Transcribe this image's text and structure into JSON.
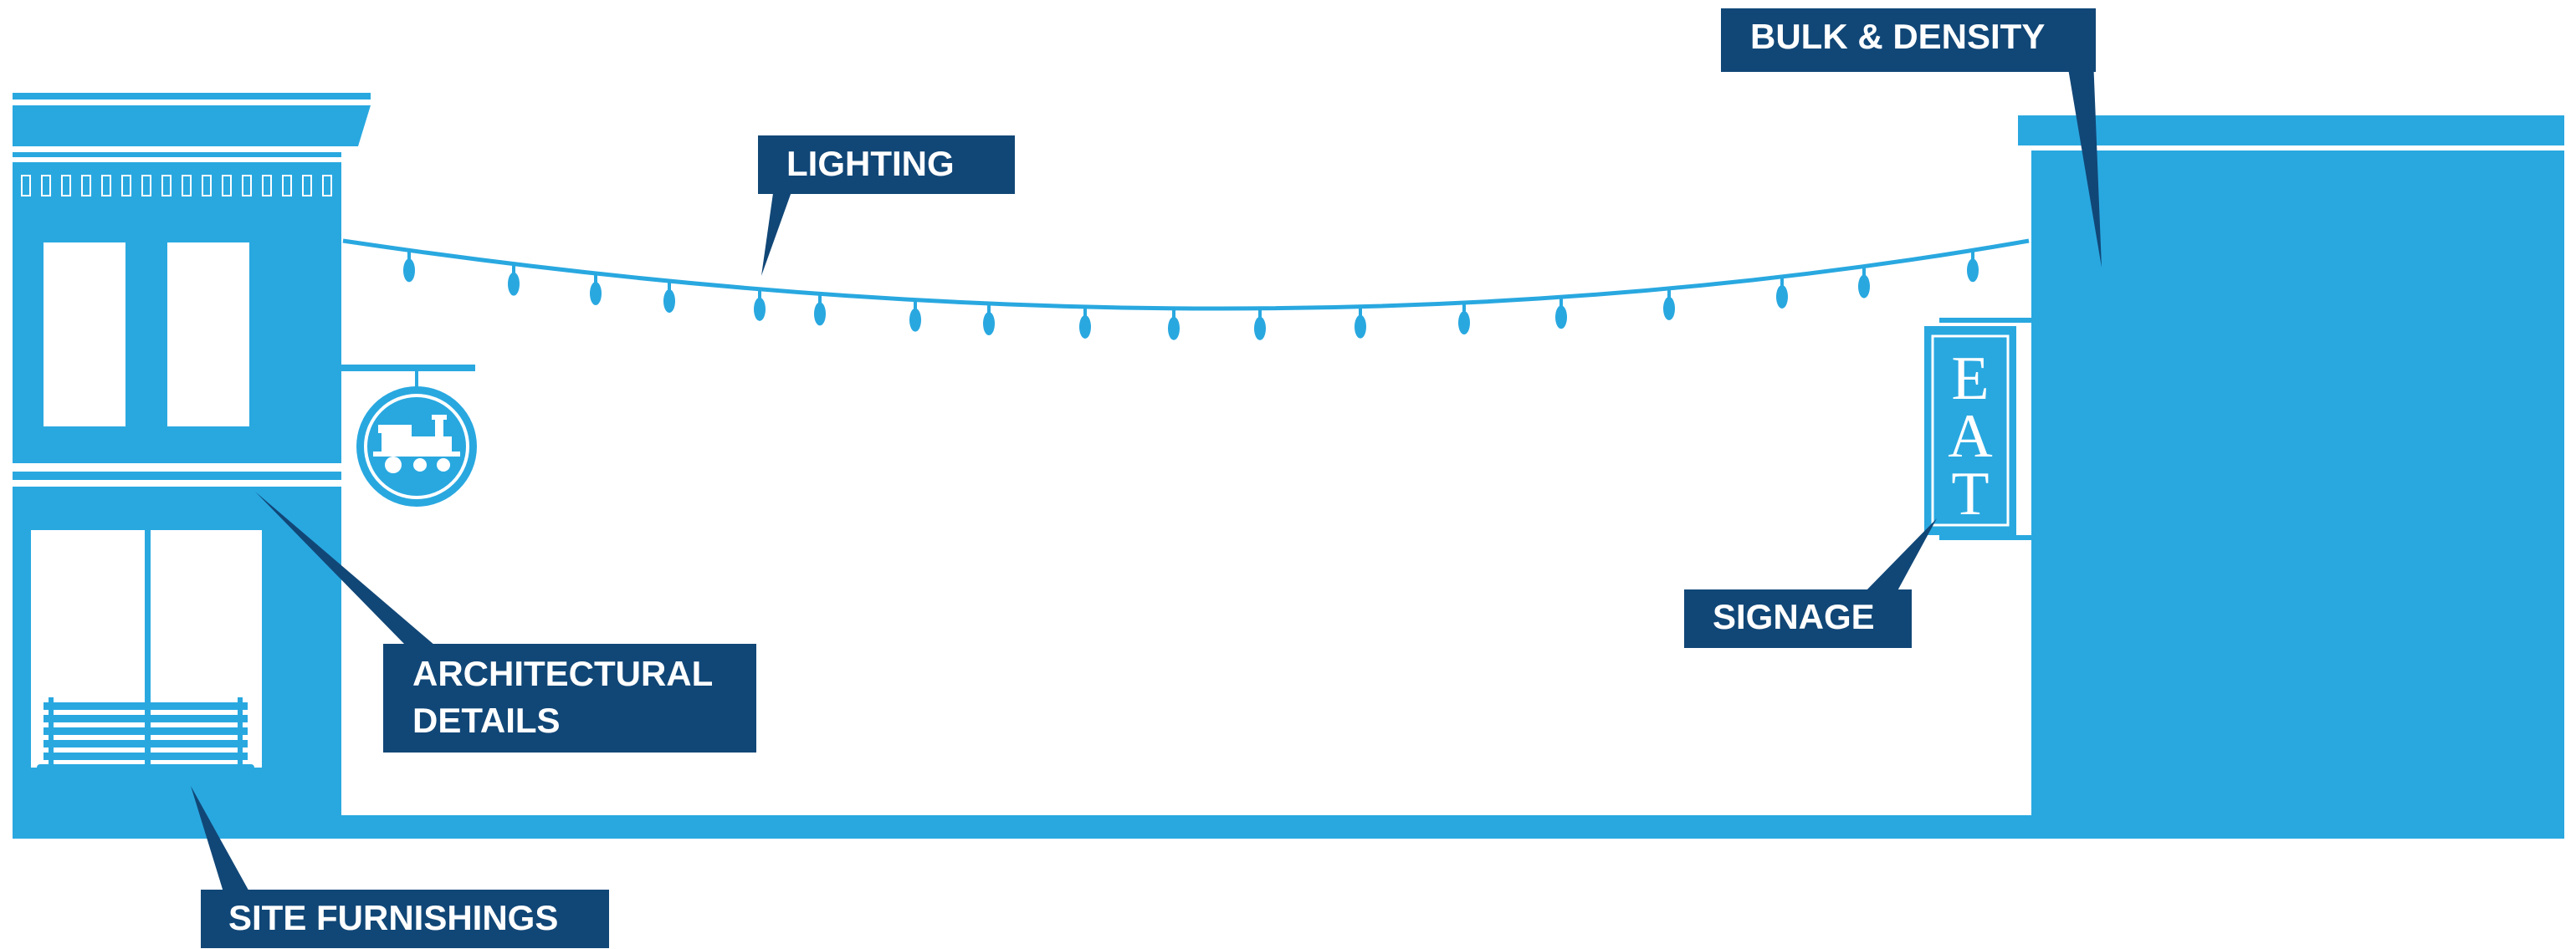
{
  "colors": {
    "building_blue": "#29a8e0",
    "callout_navy": "#114777",
    "background": "#ffffff"
  },
  "callouts": {
    "bulk_density": "BULK & DENSITY",
    "lighting": "LIGHTING",
    "architectural_line1": "ARCHITECTURAL",
    "architectural_line2": "DETAILS",
    "signage": "SIGNAGE",
    "site_furnishings": "SITE FURNISHINGS"
  },
  "eat_sign": {
    "letter1": "E",
    "letter2": "A",
    "letter3": "T"
  },
  "icons": {
    "left_sign": "train-icon",
    "right_sign": "eat-sign",
    "furniture": "bench-icon"
  }
}
